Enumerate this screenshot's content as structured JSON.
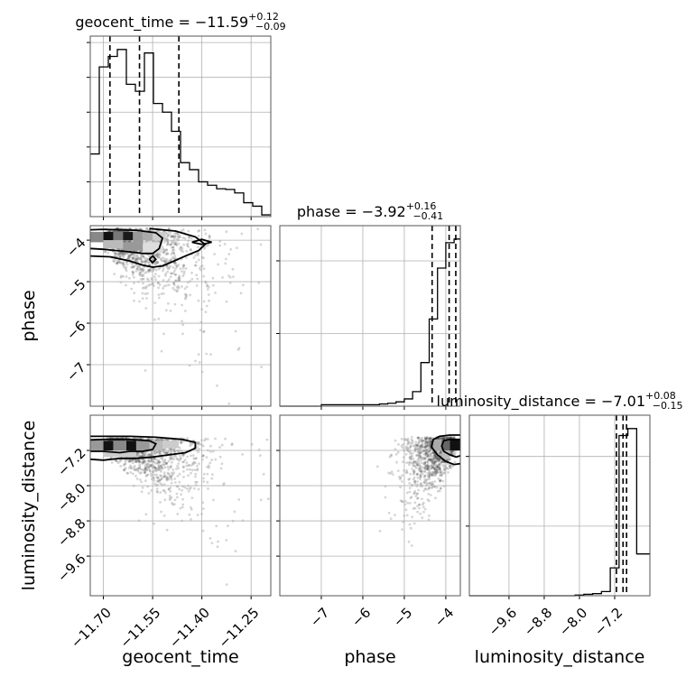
{
  "chart_data": {
    "type": "corner",
    "parameters": [
      "geocent_time",
      "phase",
      "luminosity_distance"
    ],
    "titles": [
      {
        "text": "geocent_time = −11.59",
        "sup": "+0.12",
        "sub": "−0.09"
      },
      {
        "text": "phase = −3.92",
        "sup": "+0.16",
        "sub": "−0.41"
      },
      {
        "text": "luminosity_distance = −7.01",
        "sup": "+0.08",
        "sub": "−0.15"
      }
    ],
    "axes": {
      "geocent_time": {
        "range": [
          -11.74,
          -11.19
        ],
        "ticks": [
          -11.7,
          -11.55,
          -11.4,
          -11.25
        ],
        "tick_labels": [
          "−11.70",
          "−11.55",
          "−11.40",
          "−11.25"
        ]
      },
      "phase": {
        "range": [
          -8.0,
          -3.65
        ],
        "ticks": [
          -7,
          -6,
          -5,
          -4
        ],
        "tick_labels": [
          "−7",
          "−6",
          "−5",
          "−4"
        ]
      },
      "luminosity_distance": {
        "range": [
          -10.5,
          -6.4
        ],
        "ticks": [
          -9.6,
          -8.8,
          -8.0,
          -7.2
        ],
        "tick_labels": [
          "−9.6",
          "−8.8",
          "−8.0",
          "−7.2"
        ]
      }
    },
    "diagonals": [
      {
        "param": "geocent_time",
        "bins": [
          -11.74,
          -11.7125,
          -11.685,
          -11.6575,
          -11.63,
          -11.6025,
          -11.575,
          -11.5475,
          -11.52,
          -11.4925,
          -11.465,
          -11.4375,
          -11.41,
          -11.3825,
          -11.355,
          -11.3275,
          -11.3,
          -11.2725,
          -11.245,
          -11.2175,
          -11.19
        ],
        "counts": [
          180,
          430,
          460,
          480,
          380,
          360,
          470,
          325,
          300,
          245,
          155,
          135,
          100,
          90,
          80,
          78,
          68,
          40,
          30,
          5
        ],
        "quantiles": [
          -11.68,
          -11.59,
          -11.47
        ]
      },
      {
        "param": "phase",
        "bins": [
          -8.0,
          -7.8,
          -7.6,
          -7.4,
          -7.2,
          -7.0,
          -6.8,
          -6.6,
          -6.4,
          -6.2,
          -6.0,
          -5.8,
          -5.6,
          -5.4,
          -5.2,
          -5.0,
          -4.8,
          -4.6,
          -4.4,
          -4.2,
          -4.0,
          -3.8,
          -3.65
        ],
        "counts": [
          0,
          0,
          0,
          0,
          0,
          2,
          2,
          2,
          2,
          2,
          2,
          2,
          3,
          4,
          6,
          10,
          20,
          60,
          120,
          190,
          225,
          230
        ],
        "quantiles": [
          -4.33,
          -3.92,
          -3.76
        ]
      },
      {
        "param": "luminosity_distance",
        "bins": [
          -10.5,
          -10.3,
          -10.1,
          -9.9,
          -9.7,
          -9.5,
          -9.3,
          -9.1,
          -8.9,
          -8.7,
          -8.5,
          -8.3,
          -8.1,
          -7.9,
          -7.7,
          -7.5,
          -7.3,
          -7.1,
          -6.9,
          -6.7,
          -6.5,
          -6.4
        ],
        "counts": [
          0,
          0,
          0,
          0,
          0,
          0,
          0,
          0,
          0,
          0,
          0,
          0,
          1,
          2,
          3,
          6,
          40,
          230,
          240,
          60,
          60
        ],
        "quantiles": [
          -7.16,
          -7.01,
          -6.93
        ]
      }
    ],
    "pairs": [
      {
        "x": "geocent_time",
        "y": "phase",
        "row": 1,
        "col": 0
      },
      {
        "x": "geocent_time",
        "y": "luminosity_distance",
        "row": 2,
        "col": 0
      },
      {
        "x": "phase",
        "y": "luminosity_distance",
        "row": 2,
        "col": 1
      }
    ],
    "grid": true
  }
}
